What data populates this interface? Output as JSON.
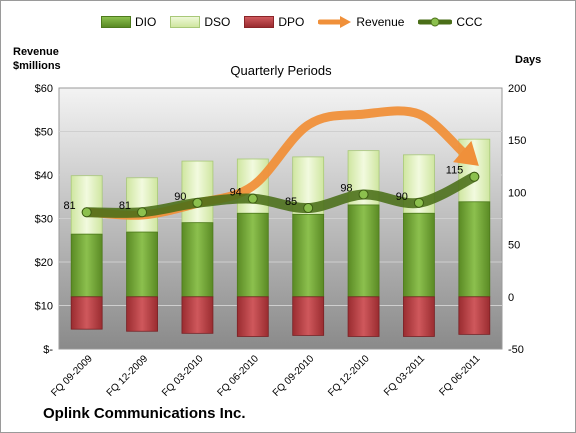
{
  "legend": {
    "dio": "DIO",
    "dso": "DSO",
    "dpo": "DPO",
    "revenue": "Revenue",
    "ccc": "CCC"
  },
  "left_axis_title_line1": "Revenue",
  "left_axis_title_line2": "$millions",
  "right_axis_title": "Days",
  "company_name": "Oplink Communications Inc.",
  "colors": {
    "dio": "#6a9a2e",
    "dso": "#dbeeb3",
    "dpo": "#b23a3e",
    "revenue": "#f0903a",
    "ccc": "#4a6e18",
    "plot_background_top": "#f0f0f0",
    "plot_background_bottom": "#8a8a8a"
  },
  "chart_data": {
    "type": "bar",
    "title": "Quarterly Periods",
    "categories": [
      "FQ 09-2009",
      "FQ 12-2009",
      "FQ 03-2010",
      "FQ 06-2010",
      "FQ 09-2010",
      "FQ 12-2010",
      "FQ 03-2011",
      "FQ 06-2011"
    ],
    "series": [
      {
        "name": "DIO",
        "axis": "right",
        "values": [
          60,
          62,
          71,
          80,
          79,
          88,
          80,
          91
        ]
      },
      {
        "name": "DSO",
        "axis": "right",
        "values": [
          56,
          52,
          59,
          52,
          55,
          52,
          56,
          60
        ]
      },
      {
        "name": "DPO",
        "axis": "right",
        "values": [
          -31,
          -33,
          -35,
          -38,
          -37,
          -38,
          -38,
          -36
        ]
      },
      {
        "name": "Revenue",
        "axis": "left",
        "type": "line",
        "values": [
          31.5,
          30.8,
          33.5,
          37.5,
          51.5,
          54.0,
          54.0,
          43.0
        ]
      },
      {
        "name": "CCC",
        "axis": "right",
        "type": "line",
        "values": [
          81,
          81,
          90,
          94,
          85,
          98,
          90,
          115
        ],
        "data_labels": [
          "81",
          "81",
          "90",
          "94",
          "85",
          "98",
          "90",
          "115"
        ]
      }
    ],
    "left_axis": {
      "range": [
        0,
        60
      ],
      "ticks": [
        "$-",
        "$10",
        "$20",
        "$30",
        "$40",
        "$50",
        "$60"
      ]
    },
    "right_axis": {
      "range": [
        -50,
        200
      ],
      "ticks": [
        "-50",
        "0",
        "50",
        "100",
        "150",
        "200"
      ]
    },
    "grid": true,
    "legend_position": "top"
  }
}
